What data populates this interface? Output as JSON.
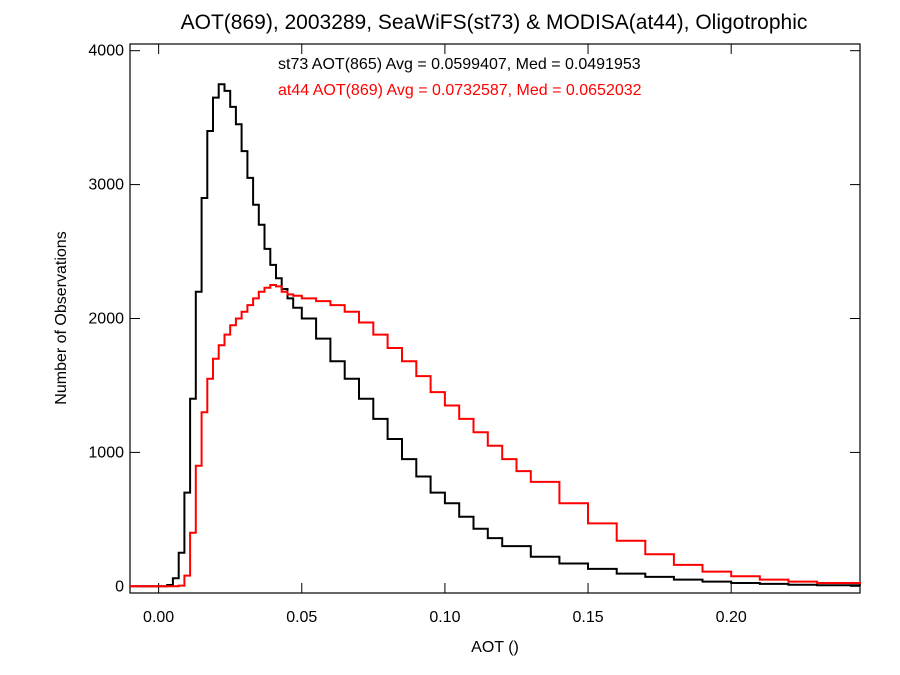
{
  "chart_data": {
    "type": "histogram-step",
    "title": "AOT(869), 2003289, SeaWiFS(st73) & MODISA(at44), Oligotrophic",
    "xlabel": "AOT ()",
    "ylabel": "Number of Observations",
    "xlim": [
      -0.01,
      0.245
    ],
    "ylim": [
      -50,
      4050
    ],
    "xticks": [
      0.0,
      0.05,
      0.1,
      0.15,
      0.2
    ],
    "xtick_labels": [
      "0.00",
      "0.05",
      "0.10",
      "0.15",
      "0.20"
    ],
    "yticks": [
      0,
      1000,
      2000,
      3000,
      4000
    ],
    "ytick_labels": [
      "0",
      "1000",
      "2000",
      "3000",
      "4000"
    ],
    "legend_placement": "top-center",
    "series": [
      {
        "name": "st73",
        "annotation": "st73 AOT(865) Avg = 0.0599407, Med = 0.0491953",
        "color": "#000000",
        "x": [
          -0.01,
          0.0,
          0.003,
          0.005,
          0.007,
          0.009,
          0.011,
          0.013,
          0.015,
          0.017,
          0.019,
          0.021,
          0.023,
          0.025,
          0.027,
          0.029,
          0.031,
          0.033,
          0.035,
          0.037,
          0.039,
          0.041,
          0.043,
          0.045,
          0.047,
          0.05,
          0.055,
          0.06,
          0.065,
          0.07,
          0.075,
          0.08,
          0.085,
          0.09,
          0.095,
          0.1,
          0.105,
          0.11,
          0.115,
          0.12,
          0.13,
          0.14,
          0.15,
          0.16,
          0.17,
          0.18,
          0.19,
          0.2,
          0.21,
          0.22,
          0.23,
          0.245
        ],
        "y": [
          0,
          0,
          10,
          60,
          250,
          700,
          1400,
          2200,
          2900,
          3400,
          3650,
          3750,
          3700,
          3580,
          3450,
          3250,
          3050,
          2850,
          2700,
          2520,
          2400,
          2300,
          2220,
          2150,
          2080,
          2000,
          1850,
          1680,
          1550,
          1400,
          1250,
          1100,
          950,
          820,
          700,
          620,
          520,
          430,
          360,
          300,
          220,
          170,
          130,
          95,
          70,
          50,
          35,
          25,
          18,
          12,
          8,
          5
        ]
      },
      {
        "name": "at44",
        "annotation": "at44 AOT(869) Avg = 0.0732587, Med = 0.0652032",
        "color": "#ff0000",
        "x": [
          -0.01,
          0.0,
          0.005,
          0.007,
          0.009,
          0.011,
          0.013,
          0.015,
          0.017,
          0.019,
          0.021,
          0.023,
          0.025,
          0.027,
          0.029,
          0.031,
          0.033,
          0.035,
          0.037,
          0.039,
          0.041,
          0.043,
          0.045,
          0.047,
          0.05,
          0.055,
          0.06,
          0.065,
          0.07,
          0.075,
          0.08,
          0.085,
          0.09,
          0.095,
          0.1,
          0.105,
          0.11,
          0.115,
          0.12,
          0.125,
          0.13,
          0.14,
          0.15,
          0.16,
          0.17,
          0.18,
          0.19,
          0.2,
          0.21,
          0.22,
          0.23,
          0.245
        ],
        "y": [
          0,
          0,
          0,
          5,
          80,
          400,
          900,
          1300,
          1550,
          1700,
          1800,
          1880,
          1950,
          2000,
          2050,
          2100,
          2150,
          2200,
          2230,
          2250,
          2240,
          2200,
          2180,
          2170,
          2150,
          2130,
          2100,
          2050,
          1970,
          1880,
          1780,
          1680,
          1570,
          1450,
          1350,
          1250,
          1150,
          1050,
          950,
          860,
          780,
          620,
          470,
          340,
          240,
          160,
          110,
          75,
          50,
          35,
          25,
          15
        ]
      }
    ]
  }
}
